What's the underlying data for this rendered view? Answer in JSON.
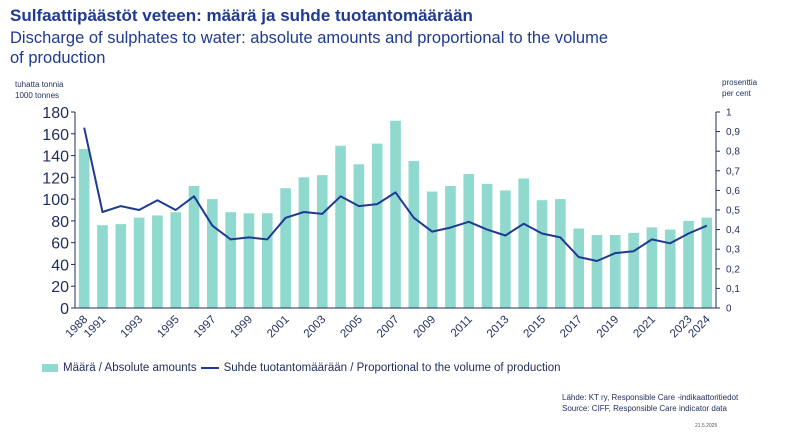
{
  "title": "Sulfaattipäästöt veteen: määrä ja suhde tuotantomäärään",
  "subtitle": "Discharge of sulphates to water: absolute amounts and proportional to the volume of production",
  "left_unit": [
    "tuhatta tonnia",
    "1000 tonnes"
  ],
  "right_unit": [
    "prosenttia",
    "per cent"
  ],
  "legend": {
    "bars": "Määrä / Absolute amounts",
    "line": "Suhde tuotantomäärään / Proportional to the volume of production"
  },
  "source": {
    "fi": "Lähde: KT ry, Responsible Care -indikaattoritiedot",
    "en": "Source: CIFF, Responsible Care indicator data"
  },
  "date": "21.5.2025",
  "colors": {
    "bars": "#8fd9cf",
    "line": "#1f3a93",
    "axis": "#1f2d5c"
  },
  "chart_data": {
    "type": "bar",
    "categories": [
      "1988",
      "1991",
      "1992",
      "1993",
      "1994",
      "1995",
      "1996",
      "1997",
      "1998",
      "1999",
      "2000",
      "2001",
      "2002",
      "2003",
      "2004",
      "2005",
      "2006",
      "2007",
      "2008",
      "2009",
      "2010",
      "2011",
      "2012",
      "2013",
      "2014",
      "2015",
      "2016",
      "2017",
      "2018",
      "2019",
      "2020",
      "2021",
      "2022",
      "2023",
      "2024"
    ],
    "x_tick_labels": [
      "1988",
      "1991",
      "1993",
      "1995",
      "1997",
      "1999",
      "2001",
      "2003",
      "2005",
      "2007",
      "2009",
      "2011",
      "2013",
      "2015",
      "2017",
      "2019",
      "2021",
      "2023",
      "2024"
    ],
    "series": [
      {
        "name": "Määrä / Absolute amounts",
        "type": "bar",
        "axis": "left",
        "values": [
          146,
          76,
          77,
          83,
          85,
          88,
          112,
          100,
          88,
          87,
          87,
          110,
          120,
          122,
          149,
          132,
          151,
          172,
          135,
          107,
          112,
          123,
          114,
          108,
          119,
          99,
          100,
          73,
          67,
          67,
          69,
          74,
          72,
          80,
          83
        ]
      },
      {
        "name": "Suhde tuotantomäärään / Proportional to the volume of production",
        "type": "line",
        "axis": "right",
        "values": [
          0.92,
          0.49,
          0.52,
          0.5,
          0.55,
          0.5,
          0.57,
          0.42,
          0.35,
          0.36,
          0.35,
          0.46,
          0.49,
          0.48,
          0.57,
          0.52,
          0.53,
          0.59,
          0.46,
          0.39,
          0.41,
          0.44,
          0.4,
          0.37,
          0.43,
          0.38,
          0.36,
          0.26,
          0.24,
          0.28,
          0.29,
          0.35,
          0.33,
          0.38,
          0.42
        ]
      }
    ],
    "y_left": {
      "min": 0,
      "max": 180,
      "step": 20
    },
    "y_right": {
      "min": 0,
      "max": 1,
      "step": 0.1,
      "tick_labels": [
        "0",
        "0,1",
        "0,2",
        "0,3",
        "0,4",
        "0,5",
        "0,6",
        "0,7",
        "0,8",
        "0,9",
        "1"
      ]
    },
    "grid": false,
    "legend_position": "bottom"
  }
}
